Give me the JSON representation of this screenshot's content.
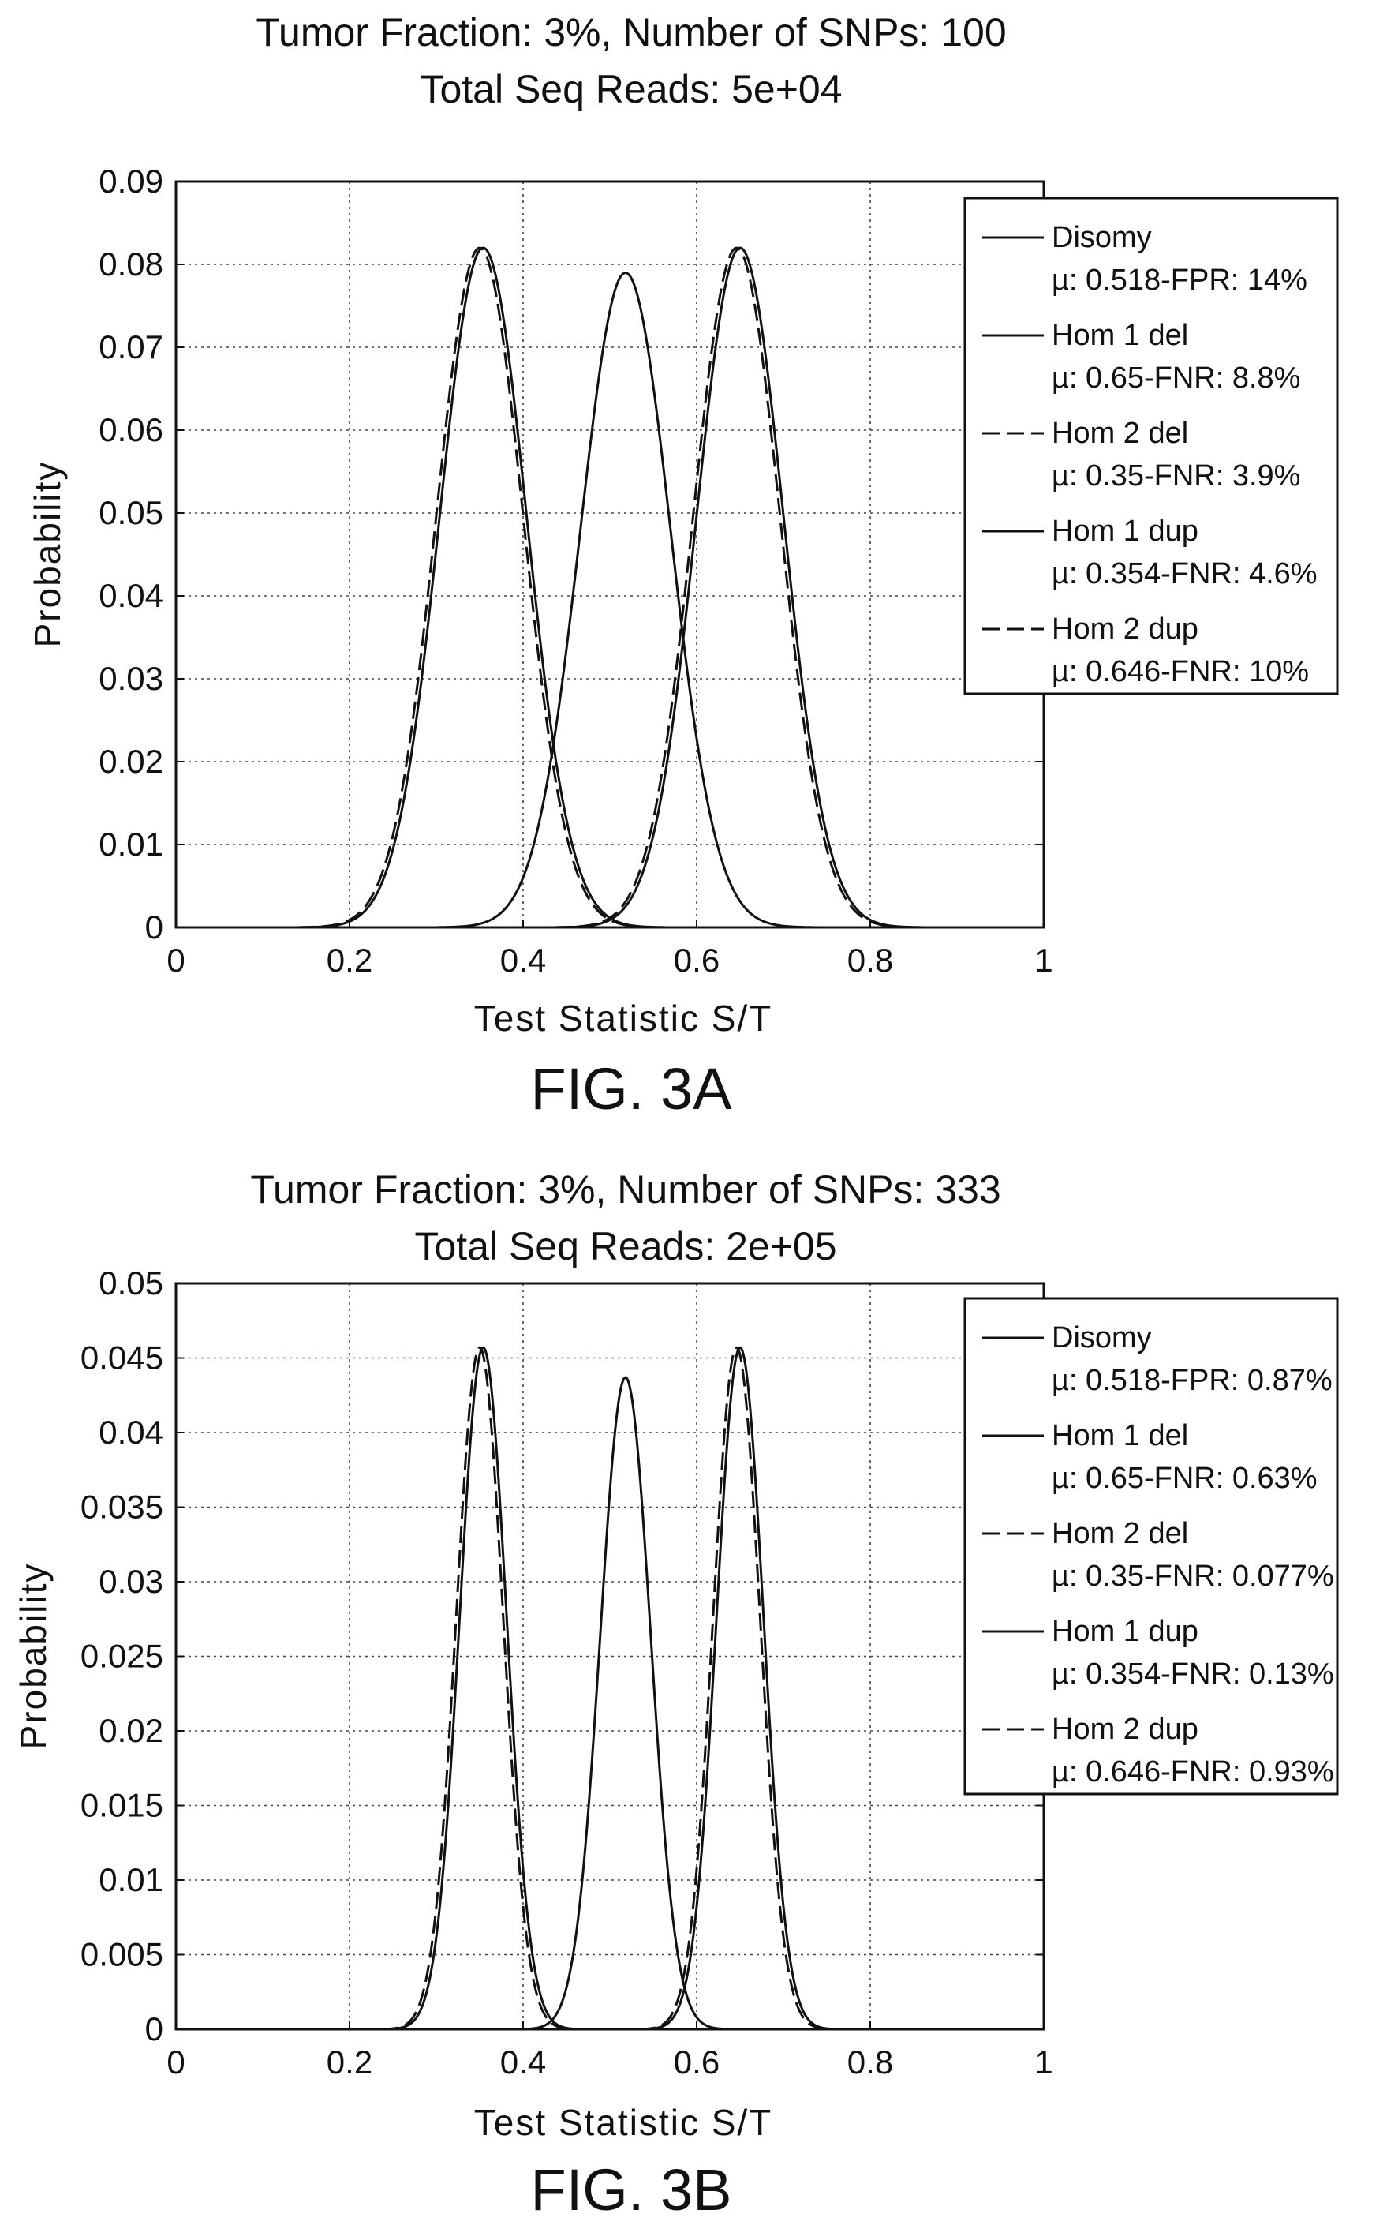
{
  "figures": [
    {
      "fig_label": "FIG. 3A",
      "chart_data": {
        "type": "line",
        "title": [
          "Tumor Fraction: 3%, Number of SNPs: 100",
          "Total Seq Reads: 5e+04"
        ],
        "xlabel": "Test Statistic S/T",
        "ylabel": "Probability",
        "xlim": [
          0,
          1
        ],
        "ylim": [
          0,
          0.09
        ],
        "xticks": [
          0,
          0.2,
          0.4,
          0.6,
          0.8,
          1
        ],
        "xtick_labels": [
          "0",
          "0.2",
          "0.4",
          "0.6",
          "0.8",
          "1"
        ],
        "yticks": [
          0,
          0.01,
          0.02,
          0.03,
          0.04,
          0.05,
          0.06,
          0.07,
          0.08,
          0.09
        ],
        "ytick_labels": [
          "0",
          "0.01",
          "0.02",
          "0.03",
          "0.04",
          "0.05",
          "0.06",
          "0.07",
          "0.08",
          "0.09"
        ],
        "grid": true,
        "legend_position": "top-right",
        "series": [
          {
            "name": "Disomy",
            "stats": "µ: 0.518-FPR: 14%",
            "style": "solid",
            "mu": 0.518,
            "peak": 0.079,
            "sigma": 0.052
          },
          {
            "name": "Hom 1 del",
            "stats": "µ: 0.65-FNR: 8.8%",
            "style": "solid",
            "mu": 0.65,
            "peak": 0.082,
            "sigma": 0.05
          },
          {
            "name": "Hom 2 del",
            "stats": "µ: 0.35-FNR: 3.9%",
            "style": "dashed",
            "mu": 0.35,
            "peak": 0.082,
            "sigma": 0.05
          },
          {
            "name": "Hom 1 dup",
            "stats": "µ: 0.354-FNR: 4.6%",
            "style": "solid",
            "mu": 0.354,
            "peak": 0.082,
            "sigma": 0.05
          },
          {
            "name": "Hom 2 dup",
            "stats": "µ: 0.646-FNR: 10%",
            "style": "dashed",
            "mu": 0.646,
            "peak": 0.082,
            "sigma": 0.05
          }
        ]
      }
    },
    {
      "fig_label": "FIG. 3B",
      "chart_data": {
        "type": "line",
        "title": [
          "Tumor Fraction: 3%, Number of SNPs: 333",
          "Total Seq Reads: 2e+05"
        ],
        "xlabel": "Test Statistic S/T",
        "ylabel": "Probability",
        "xlim": [
          0,
          1
        ],
        "ylim": [
          0,
          0.05
        ],
        "xticks": [
          0,
          0.2,
          0.4,
          0.6,
          0.8,
          1
        ],
        "xtick_labels": [
          "0",
          "0.2",
          "0.4",
          "0.6",
          "0.8",
          "1"
        ],
        "yticks": [
          0,
          0.005,
          0.01,
          0.015,
          0.02,
          0.025,
          0.03,
          0.035,
          0.04,
          0.045,
          0.05
        ],
        "ytick_labels": [
          "0",
          "0.005",
          "0.01",
          "0.015",
          "0.02",
          "0.025",
          "0.03",
          "0.035",
          "0.04",
          "0.045",
          "0.05"
        ],
        "grid": true,
        "legend_position": "top-right",
        "series": [
          {
            "name": "Disomy",
            "stats": "µ: 0.518-FPR: 0.87%",
            "style": "solid",
            "mu": 0.518,
            "peak": 0.0437,
            "sigma": 0.029
          },
          {
            "name": "Hom 1 del",
            "stats": "µ: 0.65-FNR: 0.63%",
            "style": "solid",
            "mu": 0.65,
            "peak": 0.0457,
            "sigma": 0.027
          },
          {
            "name": "Hom 2 del",
            "stats": "µ: 0.35-FNR: 0.077%",
            "style": "dashed",
            "mu": 0.35,
            "peak": 0.0457,
            "sigma": 0.027
          },
          {
            "name": "Hom 1 dup",
            "stats": "µ: 0.354-FNR: 0.13%",
            "style": "solid",
            "mu": 0.354,
            "peak": 0.0457,
            "sigma": 0.027
          },
          {
            "name": "Hom 2 dup",
            "stats": "µ: 0.646-FNR: 0.93%",
            "style": "dashed",
            "mu": 0.646,
            "peak": 0.0457,
            "sigma": 0.027
          }
        ]
      }
    }
  ]
}
